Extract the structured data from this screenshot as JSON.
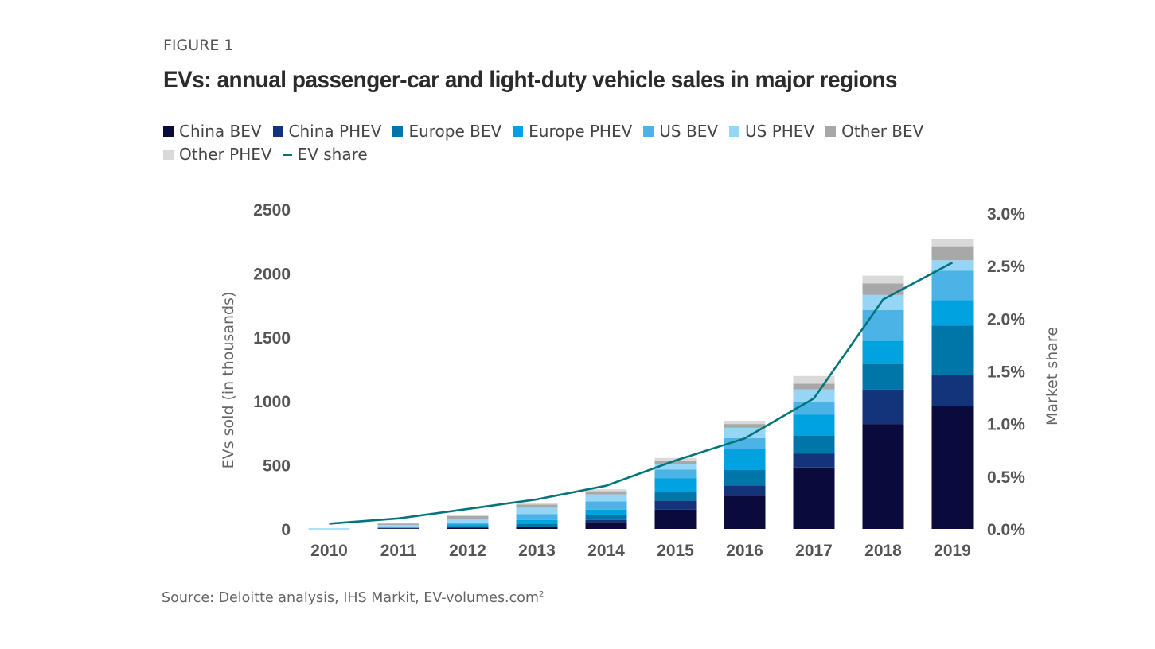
{
  "figure_label": "FIGURE 1",
  "source": {
    "text": "Source: Deloitte analysis, IHS Markit, EV-volumes.com",
    "footnote": "2"
  },
  "chart_data": {
    "type": "bar",
    "stacked": true,
    "title": "EVs: annual passenger-car and light-duty vehicle sales in major regions",
    "categories": [
      "2010",
      "2011",
      "2012",
      "2013",
      "2014",
      "2015",
      "2016",
      "2017",
      "2018",
      "2019"
    ],
    "ylabel": "EVs sold (in thousands)",
    "ylim": [
      0,
      2500
    ],
    "yticks": [
      "0",
      "500",
      "1000",
      "1500",
      "2000",
      "2500"
    ],
    "y2label": "Market share",
    "y2lim": [
      0,
      3.0
    ],
    "y2ticks": [
      "0.0%",
      "0.5%",
      "1.0%",
      "1.5%",
      "2.0%",
      "2.5%",
      "3.0%"
    ],
    "legend_position": "top",
    "grid": false,
    "series": [
      {
        "name": "China BEV",
        "color": "#0a0a3c",
        "values": [
          0,
          5,
          10,
          15,
          55,
          150,
          260,
          480,
          820,
          960
        ]
      },
      {
        "name": "China PHEV",
        "color": "#13337a",
        "values": [
          0,
          0,
          0,
          0,
          15,
          70,
          80,
          110,
          270,
          240
        ]
      },
      {
        "name": "Europe BEV",
        "color": "#0076a8",
        "values": [
          0,
          3,
          12,
          25,
          40,
          70,
          120,
          140,
          200,
          390
        ]
      },
      {
        "name": "Europe PHEV",
        "color": "#00a3e0",
        "values": [
          0,
          2,
          12,
          30,
          40,
          105,
          165,
          165,
          180,
          200
        ]
      },
      {
        "name": "US BEV",
        "color": "#4cb3e6",
        "values": [
          0,
          10,
          17,
          45,
          65,
          70,
          85,
          100,
          240,
          230
        ]
      },
      {
        "name": "US PHEV",
        "color": "#95d6f7",
        "values": [
          0,
          10,
          30,
          50,
          55,
          40,
          80,
          95,
          120,
          80
        ]
      },
      {
        "name": "Other BEV",
        "color": "#a8a8a8",
        "values": [
          0,
          12,
          20,
          25,
          25,
          30,
          30,
          45,
          90,
          110
        ]
      },
      {
        "name": "Other PHEV",
        "color": "#d9d9d9",
        "values": [
          0,
          3,
          10,
          12,
          15,
          20,
          25,
          60,
          60,
          60
        ]
      }
    ],
    "line_series": {
      "name": "EV share",
      "color": "#00757a",
      "axis": "right",
      "values": [
        0.05,
        0.1,
        0.19,
        0.28,
        0.41,
        0.65,
        0.86,
        1.24,
        2.18,
        2.53
      ]
    }
  }
}
